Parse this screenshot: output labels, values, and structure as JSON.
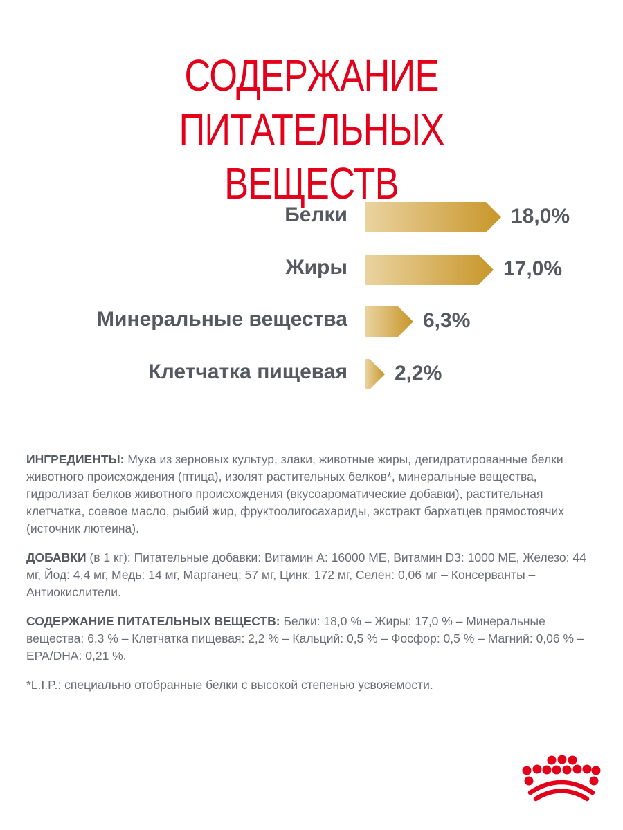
{
  "title": {
    "line1": "СОДЕРЖАНИЕ ПИТАТЕЛЬНЫХ",
    "line2": "ВЕЩЕСТВ"
  },
  "chart_data": {
    "type": "bar",
    "orientation": "horizontal",
    "categories": [
      "Белки",
      "Жиры",
      "Минеральные вещества",
      "Клетчатка пищевая"
    ],
    "values": [
      18.0,
      17.0,
      6.3,
      2.2
    ],
    "value_labels": [
      "18,0%",
      "17,0%",
      "6,3%",
      "2,2%"
    ],
    "unit": "%",
    "xlim": [
      0,
      18.0
    ],
    "colors": {
      "bar_start": "#ead3a0",
      "bar_end": "#c8962a",
      "label": "#555a61"
    }
  },
  "ingredients": {
    "heading": "ИНГРЕДИЕНТЫ:",
    "text": " Мука из зерновых культур, злаки, животные жиры, дегидратированные белки животного происхождения (птица), изолят растительных белков*, минеральные вещества, гидролизат белков животного происхождения (вкусоароматические добавки), растительная клетчатка, соевое масло, рыбий жир, фруктоолигосахариды, экстракт бархатцев прямостоячих (источник лютеина)."
  },
  "additives": {
    "heading": "ДОБАВКИ",
    "text": " (в 1 кг): Питательные добавки: Витамин А: 16000 МЕ, Витамин D3: 1000 МЕ, Железо: 44 мг, Йод: 4,4 мг, Медь: 14 мг, Марганец: 57 мг, Цинк: 172 мг, Селен: 0,06 мг – Консерванты – Антиокислители."
  },
  "nutrients": {
    "heading": "СОДЕРЖАНИЕ ПИТАТЕЛЬНЫХ ВЕЩЕСТВ:",
    "text": " Белки: 18,0 % – Жиры: 17,0 % – Минеральные вещества: 6,3 % – Клетчатка пищевая: 2,2 % – Кальций: 0,5 % – Фосфор: 0,5 % – Магний: 0,06 % – EPA/DHA: 0,21 %."
  },
  "footnote": {
    "text": "*L.I.P.: специально отобранные белки с высокой степенью усвояемости."
  },
  "logo": {
    "icon": "royal-canin-crown-icon",
    "color": "#e2001a"
  }
}
